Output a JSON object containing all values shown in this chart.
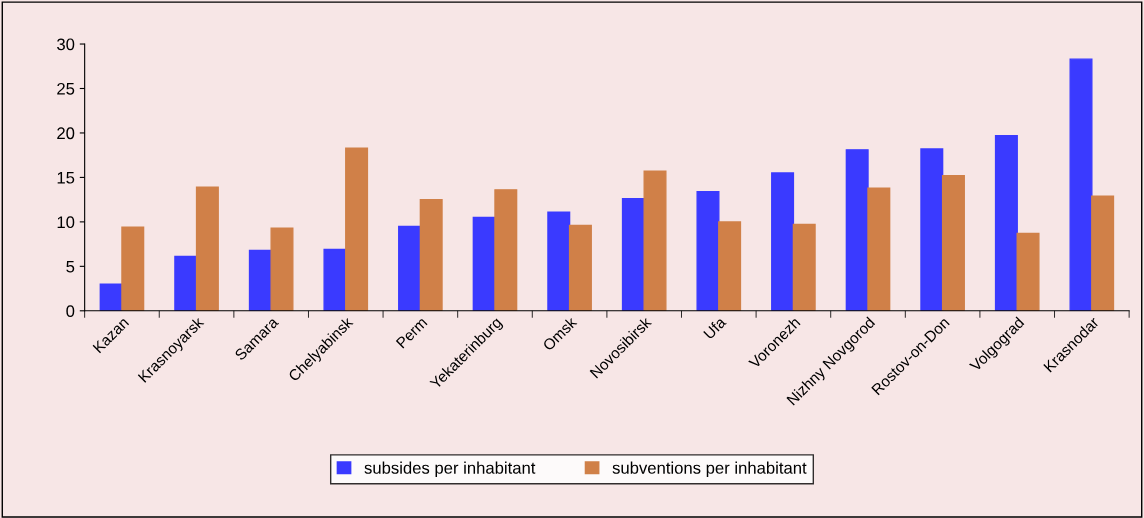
{
  "chart_data": {
    "type": "bar",
    "categories": [
      "Kazan",
      "Krasnoyarsk",
      "Samara",
      "Chelyabinsk",
      "Perm",
      "Yekaterinburg",
      "Omsk",
      "Novosibirsk",
      "Ufa",
      "Voronezh",
      "Nizhny Novgorod",
      "Rostov-on-Don",
      "Volgograd",
      "Krasnodar"
    ],
    "series": [
      {
        "name": "subsides per inhabitant",
        "color": "#3a3aff",
        "values": [
          3.0,
          6.1,
          6.8,
          6.9,
          9.5,
          10.5,
          11.1,
          12.6,
          13.4,
          15.5,
          18.1,
          18.2,
          19.7,
          28.3
        ]
      },
      {
        "name": "subventions per inhabitant",
        "color": "#d08048",
        "values": [
          9.4,
          13.9,
          9.3,
          18.3,
          12.5,
          13.6,
          9.6,
          15.7,
          10.0,
          9.7,
          13.8,
          15.2,
          8.7,
          12.9
        ]
      }
    ],
    "ylim": [
      0,
      30
    ],
    "yticks": [
      0,
      5,
      10,
      15,
      20,
      25,
      30
    ],
    "grid": false,
    "legend": "bottom"
  }
}
